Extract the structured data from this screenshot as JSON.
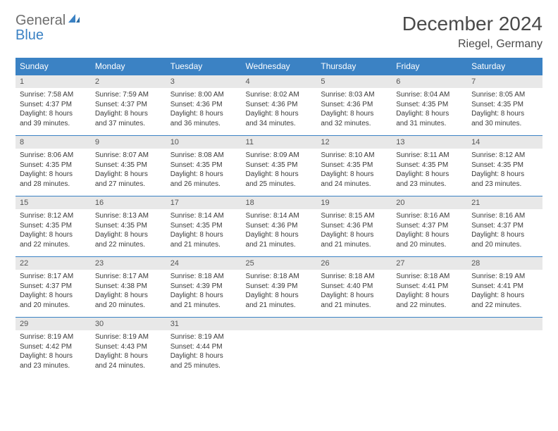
{
  "brand": {
    "word1": "General",
    "word2": "Blue"
  },
  "title": "December 2024",
  "location": "Riegel, Germany",
  "colors": {
    "accent": "#3b82c4",
    "headerText": "#ffffff",
    "dayHeaderBg": "#e8e8e8",
    "bodyText": "#3a3a3a"
  },
  "weekdays": [
    "Sunday",
    "Monday",
    "Tuesday",
    "Wednesday",
    "Thursday",
    "Friday",
    "Saturday"
  ],
  "weeks": [
    [
      {
        "n": "1",
        "sr": "Sunrise: 7:58 AM",
        "ss": "Sunset: 4:37 PM",
        "d1": "Daylight: 8 hours",
        "d2": "and 39 minutes."
      },
      {
        "n": "2",
        "sr": "Sunrise: 7:59 AM",
        "ss": "Sunset: 4:37 PM",
        "d1": "Daylight: 8 hours",
        "d2": "and 37 minutes."
      },
      {
        "n": "3",
        "sr": "Sunrise: 8:00 AM",
        "ss": "Sunset: 4:36 PM",
        "d1": "Daylight: 8 hours",
        "d2": "and 36 minutes."
      },
      {
        "n": "4",
        "sr": "Sunrise: 8:02 AM",
        "ss": "Sunset: 4:36 PM",
        "d1": "Daylight: 8 hours",
        "d2": "and 34 minutes."
      },
      {
        "n": "5",
        "sr": "Sunrise: 8:03 AM",
        "ss": "Sunset: 4:36 PM",
        "d1": "Daylight: 8 hours",
        "d2": "and 32 minutes."
      },
      {
        "n": "6",
        "sr": "Sunrise: 8:04 AM",
        "ss": "Sunset: 4:35 PM",
        "d1": "Daylight: 8 hours",
        "d2": "and 31 minutes."
      },
      {
        "n": "7",
        "sr": "Sunrise: 8:05 AM",
        "ss": "Sunset: 4:35 PM",
        "d1": "Daylight: 8 hours",
        "d2": "and 30 minutes."
      }
    ],
    [
      {
        "n": "8",
        "sr": "Sunrise: 8:06 AM",
        "ss": "Sunset: 4:35 PM",
        "d1": "Daylight: 8 hours",
        "d2": "and 28 minutes."
      },
      {
        "n": "9",
        "sr": "Sunrise: 8:07 AM",
        "ss": "Sunset: 4:35 PM",
        "d1": "Daylight: 8 hours",
        "d2": "and 27 minutes."
      },
      {
        "n": "10",
        "sr": "Sunrise: 8:08 AM",
        "ss": "Sunset: 4:35 PM",
        "d1": "Daylight: 8 hours",
        "d2": "and 26 minutes."
      },
      {
        "n": "11",
        "sr": "Sunrise: 8:09 AM",
        "ss": "Sunset: 4:35 PM",
        "d1": "Daylight: 8 hours",
        "d2": "and 25 minutes."
      },
      {
        "n": "12",
        "sr": "Sunrise: 8:10 AM",
        "ss": "Sunset: 4:35 PM",
        "d1": "Daylight: 8 hours",
        "d2": "and 24 minutes."
      },
      {
        "n": "13",
        "sr": "Sunrise: 8:11 AM",
        "ss": "Sunset: 4:35 PM",
        "d1": "Daylight: 8 hours",
        "d2": "and 23 minutes."
      },
      {
        "n": "14",
        "sr": "Sunrise: 8:12 AM",
        "ss": "Sunset: 4:35 PM",
        "d1": "Daylight: 8 hours",
        "d2": "and 23 minutes."
      }
    ],
    [
      {
        "n": "15",
        "sr": "Sunrise: 8:12 AM",
        "ss": "Sunset: 4:35 PM",
        "d1": "Daylight: 8 hours",
        "d2": "and 22 minutes."
      },
      {
        "n": "16",
        "sr": "Sunrise: 8:13 AM",
        "ss": "Sunset: 4:35 PM",
        "d1": "Daylight: 8 hours",
        "d2": "and 22 minutes."
      },
      {
        "n": "17",
        "sr": "Sunrise: 8:14 AM",
        "ss": "Sunset: 4:35 PM",
        "d1": "Daylight: 8 hours",
        "d2": "and 21 minutes."
      },
      {
        "n": "18",
        "sr": "Sunrise: 8:14 AM",
        "ss": "Sunset: 4:36 PM",
        "d1": "Daylight: 8 hours",
        "d2": "and 21 minutes."
      },
      {
        "n": "19",
        "sr": "Sunrise: 8:15 AM",
        "ss": "Sunset: 4:36 PM",
        "d1": "Daylight: 8 hours",
        "d2": "and 21 minutes."
      },
      {
        "n": "20",
        "sr": "Sunrise: 8:16 AM",
        "ss": "Sunset: 4:37 PM",
        "d1": "Daylight: 8 hours",
        "d2": "and 20 minutes."
      },
      {
        "n": "21",
        "sr": "Sunrise: 8:16 AM",
        "ss": "Sunset: 4:37 PM",
        "d1": "Daylight: 8 hours",
        "d2": "and 20 minutes."
      }
    ],
    [
      {
        "n": "22",
        "sr": "Sunrise: 8:17 AM",
        "ss": "Sunset: 4:37 PM",
        "d1": "Daylight: 8 hours",
        "d2": "and 20 minutes."
      },
      {
        "n": "23",
        "sr": "Sunrise: 8:17 AM",
        "ss": "Sunset: 4:38 PM",
        "d1": "Daylight: 8 hours",
        "d2": "and 20 minutes."
      },
      {
        "n": "24",
        "sr": "Sunrise: 8:18 AM",
        "ss": "Sunset: 4:39 PM",
        "d1": "Daylight: 8 hours",
        "d2": "and 21 minutes."
      },
      {
        "n": "25",
        "sr": "Sunrise: 8:18 AM",
        "ss": "Sunset: 4:39 PM",
        "d1": "Daylight: 8 hours",
        "d2": "and 21 minutes."
      },
      {
        "n": "26",
        "sr": "Sunrise: 8:18 AM",
        "ss": "Sunset: 4:40 PM",
        "d1": "Daylight: 8 hours",
        "d2": "and 21 minutes."
      },
      {
        "n": "27",
        "sr": "Sunrise: 8:18 AM",
        "ss": "Sunset: 4:41 PM",
        "d1": "Daylight: 8 hours",
        "d2": "and 22 minutes."
      },
      {
        "n": "28",
        "sr": "Sunrise: 8:19 AM",
        "ss": "Sunset: 4:41 PM",
        "d1": "Daylight: 8 hours",
        "d2": "and 22 minutes."
      }
    ],
    [
      {
        "n": "29",
        "sr": "Sunrise: 8:19 AM",
        "ss": "Sunset: 4:42 PM",
        "d1": "Daylight: 8 hours",
        "d2": "and 23 minutes."
      },
      {
        "n": "30",
        "sr": "Sunrise: 8:19 AM",
        "ss": "Sunset: 4:43 PM",
        "d1": "Daylight: 8 hours",
        "d2": "and 24 minutes."
      },
      {
        "n": "31",
        "sr": "Sunrise: 8:19 AM",
        "ss": "Sunset: 4:44 PM",
        "d1": "Daylight: 8 hours",
        "d2": "and 25 minutes."
      },
      {
        "n": "",
        "sr": "",
        "ss": "",
        "d1": "",
        "d2": "",
        "empty": true
      },
      {
        "n": "",
        "sr": "",
        "ss": "",
        "d1": "",
        "d2": "",
        "empty": true
      },
      {
        "n": "",
        "sr": "",
        "ss": "",
        "d1": "",
        "d2": "",
        "empty": true
      },
      {
        "n": "",
        "sr": "",
        "ss": "",
        "d1": "",
        "d2": "",
        "empty": true
      }
    ]
  ]
}
